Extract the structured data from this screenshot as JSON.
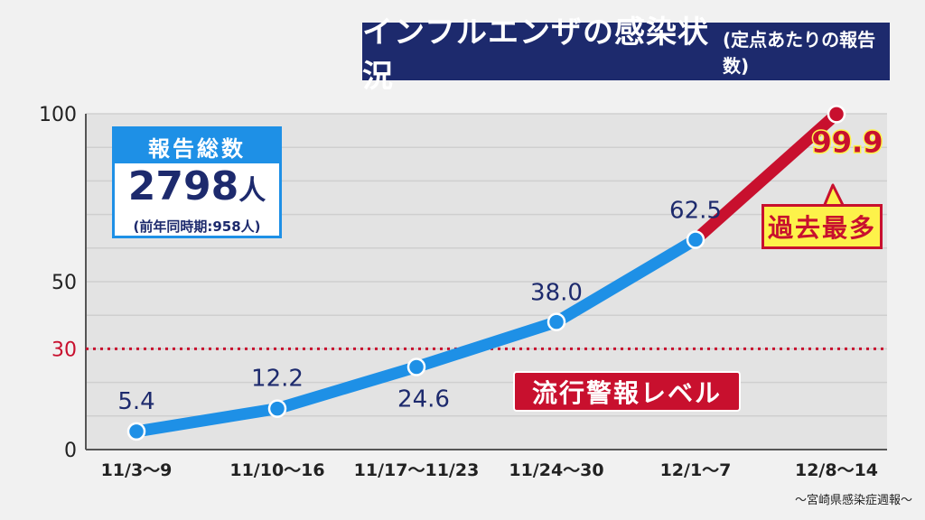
{
  "title": {
    "main": "インフルエンザの感染状況",
    "sub": "(定点あたりの報告数)"
  },
  "total_box": {
    "heading": "報告総数",
    "value": "2798",
    "unit": "人",
    "previous": "(前年同時期:958人)"
  },
  "alert_label": "流行警報レベル",
  "record_label": "過去最多",
  "source": "～宮崎県感染症週報～",
  "colors": {
    "series_blue": "#1e90e6",
    "series_red": "#c8102e",
    "threshold": "#c8102e",
    "title_bg": "#1d2a6d",
    "record_value": "#c8102e"
  },
  "chart_data": {
    "type": "line",
    "categories": [
      "11/3～9",
      "11/10～16",
      "11/17～11/23",
      "11/24～30",
      "12/1～7",
      "12/8～14"
    ],
    "series": [
      {
        "values": [
          5.4,
          12.2,
          24.6,
          38.0,
          62.5,
          99.9
        ]
      }
    ],
    "data_labels": [
      "5.4",
      "12.2",
      "24.6",
      "38.0",
      "62.5",
      "99.9"
    ],
    "y_ticks": [
      "0",
      "30",
      "50",
      "100"
    ],
    "y_tick_values": [
      0,
      30,
      50,
      100
    ],
    "ylim": [
      0,
      100
    ],
    "threshold": 30,
    "grid": true,
    "highlight_last_segment": true
  }
}
